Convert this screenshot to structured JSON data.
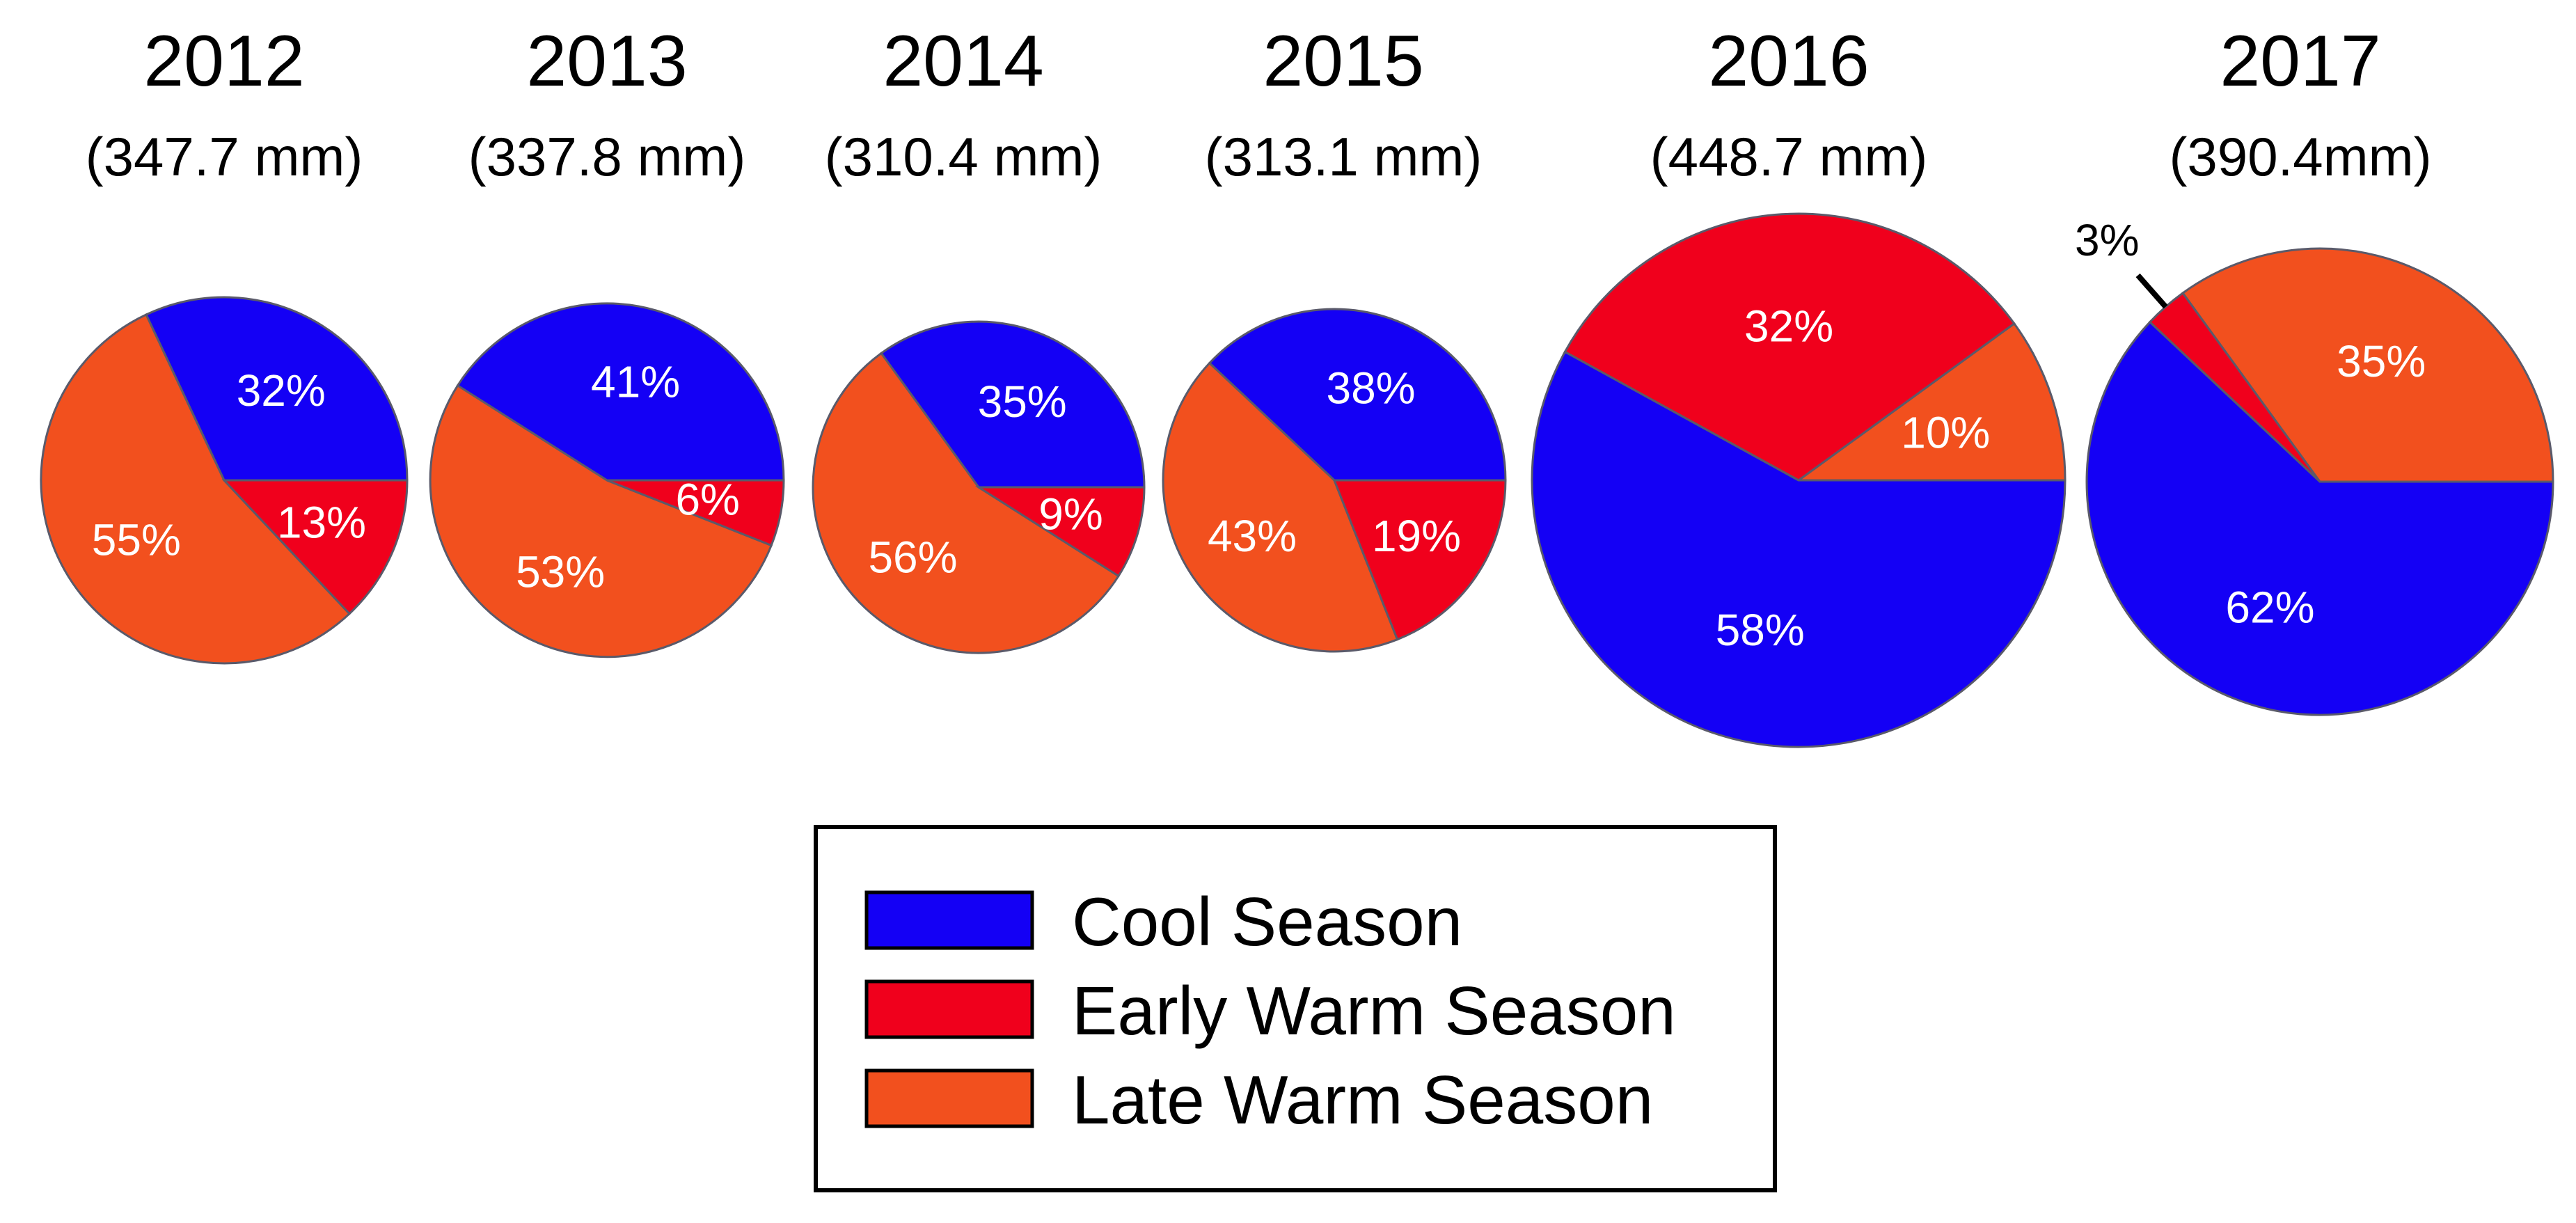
{
  "chart_data": {
    "type": "pie",
    "legend": {
      "placement": "bottom-center",
      "entries": [
        {
          "key": "cool",
          "label": "Cool Season",
          "color": "#1400f5"
        },
        {
          "key": "early",
          "label": "Early Warm Season",
          "color": "#f0001c"
        },
        {
          "key": "late",
          "label": "Late Warm Season",
          "color": "#f2501e"
        }
      ]
    },
    "pies": [
      {
        "year": "2012",
        "total_label": "(347.7 mm)",
        "total_mm": 347.7,
        "slices": [
          {
            "series": "cool",
            "value": 32,
            "label": "32%"
          },
          {
            "series": "late",
            "value": 55,
            "label": "55%"
          },
          {
            "series": "early",
            "value": 13,
            "label": "13%"
          }
        ]
      },
      {
        "year": "2013",
        "total_label": "(337.8 mm)",
        "total_mm": 337.8,
        "slices": [
          {
            "series": "cool",
            "value": 41,
            "label": "41%"
          },
          {
            "series": "late",
            "value": 53,
            "label": "53%"
          },
          {
            "series": "early",
            "value": 6,
            "label": "6%"
          }
        ]
      },
      {
        "year": "2014",
        "total_label": "(310.4 mm)",
        "total_mm": 310.4,
        "slices": [
          {
            "series": "cool",
            "value": 35,
            "label": "35%"
          },
          {
            "series": "late",
            "value": 56,
            "label": "56%"
          },
          {
            "series": "early",
            "value": 9,
            "label": "9%"
          }
        ]
      },
      {
        "year": "2015",
        "total_label": "(313.1 mm)",
        "total_mm": 313.1,
        "slices": [
          {
            "series": "cool",
            "value": 38,
            "label": "38%"
          },
          {
            "series": "late",
            "value": 43,
            "label": "43%"
          },
          {
            "series": "early",
            "value": 19,
            "label": "19%"
          }
        ]
      },
      {
        "year": "2016",
        "total_label": "(448.7 mm)",
        "total_mm": 448.7,
        "slices": [
          {
            "series": "late",
            "value": 10,
            "label": "10%"
          },
          {
            "series": "early",
            "value": 32,
            "label": "32%"
          },
          {
            "series": "cool",
            "value": 58,
            "label": "58%"
          }
        ]
      },
      {
        "year": "2017",
        "total_label": "(390.4mm)",
        "total_mm": 390.4,
        "slices": [
          {
            "series": "late",
            "value": 35,
            "label": "35%"
          },
          {
            "series": "early",
            "value": 3,
            "label": "3%",
            "label_outside": true
          },
          {
            "series": "cool",
            "value": 62,
            "label": "62%"
          }
        ]
      }
    ]
  }
}
